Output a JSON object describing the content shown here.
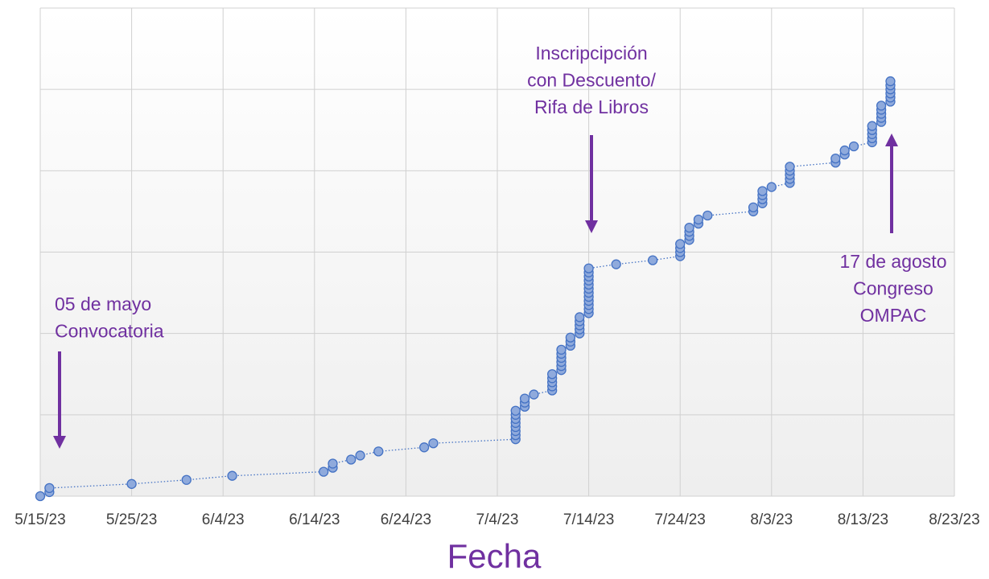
{
  "chart_data": {
    "type": "scatter",
    "x_label": "Fecha",
    "xlim": [
      "2023-05-15",
      "2023-08-23"
    ],
    "xticks": [
      {
        "value": "2023-05-15",
        "label": "5/15/23"
      },
      {
        "value": "2023-05-25",
        "label": "5/25/23"
      },
      {
        "value": "2023-06-04",
        "label": "6/4/23"
      },
      {
        "value": "2023-06-14",
        "label": "6/14/23"
      },
      {
        "value": "2023-06-24",
        "label": "6/24/23"
      },
      {
        "value": "2023-07-04",
        "label": "7/4/23"
      },
      {
        "value": "2023-07-14",
        "label": "7/14/23"
      },
      {
        "value": "2023-07-24",
        "label": "7/24/23"
      },
      {
        "value": "2023-08-03",
        "label": "8/3/23"
      },
      {
        "value": "2023-08-13",
        "label": "8/13/23"
      },
      {
        "value": "2023-08-23",
        "label": "8/23/23"
      }
    ],
    "ylim": [
      0,
      120
    ],
    "yticks": [
      0,
      20,
      40,
      60,
      80,
      100,
      120
    ],
    "ytick_labels": false,
    "grid": true,
    "color": "#8faadc",
    "edge_color": "#4472c4",
    "line_style": "dotted",
    "x": [
      "2023-05-15",
      "2023-05-16",
      "2023-05-16",
      "2023-05-25",
      "2023-05-31",
      "2023-06-05",
      "2023-06-15",
      "2023-06-16",
      "2023-06-16",
      "2023-06-18",
      "2023-06-19",
      "2023-06-21",
      "2023-06-26",
      "2023-06-27",
      "2023-07-06",
      "2023-07-06",
      "2023-07-06",
      "2023-07-06",
      "2023-07-06",
      "2023-07-06",
      "2023-07-06",
      "2023-07-06",
      "2023-07-07",
      "2023-07-07",
      "2023-07-07",
      "2023-07-08",
      "2023-07-10",
      "2023-07-10",
      "2023-07-10",
      "2023-07-10",
      "2023-07-10",
      "2023-07-11",
      "2023-07-11",
      "2023-07-11",
      "2023-07-11",
      "2023-07-11",
      "2023-07-11",
      "2023-07-12",
      "2023-07-12",
      "2023-07-12",
      "2023-07-13",
      "2023-07-13",
      "2023-07-13",
      "2023-07-13",
      "2023-07-13",
      "2023-07-14",
      "2023-07-14",
      "2023-07-14",
      "2023-07-14",
      "2023-07-14",
      "2023-07-14",
      "2023-07-14",
      "2023-07-14",
      "2023-07-14",
      "2023-07-14",
      "2023-07-14",
      "2023-07-14",
      "2023-07-17",
      "2023-07-21",
      "2023-07-24",
      "2023-07-24",
      "2023-07-24",
      "2023-07-24",
      "2023-07-25",
      "2023-07-25",
      "2023-07-25",
      "2023-07-25",
      "2023-07-26",
      "2023-07-26",
      "2023-07-27",
      "2023-08-01",
      "2023-08-01",
      "2023-08-02",
      "2023-08-02",
      "2023-08-02",
      "2023-08-02",
      "2023-08-03",
      "2023-08-05",
      "2023-08-05",
      "2023-08-05",
      "2023-08-05",
      "2023-08-05",
      "2023-08-10",
      "2023-08-10",
      "2023-08-11",
      "2023-08-11",
      "2023-08-12",
      "2023-08-14",
      "2023-08-14",
      "2023-08-14",
      "2023-08-14",
      "2023-08-14",
      "2023-08-15",
      "2023-08-15",
      "2023-08-15",
      "2023-08-15",
      "2023-08-15",
      "2023-08-16",
      "2023-08-16",
      "2023-08-16",
      "2023-08-16",
      "2023-08-16",
      "2023-08-16"
    ],
    "values": [
      0,
      1,
      2,
      3,
      4,
      5,
      6,
      7,
      8,
      9,
      10,
      11,
      12,
      13,
      14,
      15,
      16,
      17,
      18,
      19,
      20,
      21,
      22,
      23,
      24,
      25,
      26,
      27,
      28,
      29,
      30,
      31,
      32,
      33,
      34,
      35,
      36,
      37,
      38,
      39,
      40,
      41,
      42,
      43,
      44,
      45,
      46,
      47,
      48,
      49,
      50,
      51,
      52,
      53,
      54,
      55,
      56,
      57,
      58,
      59,
      60,
      61,
      62,
      63,
      64,
      65,
      66,
      67,
      68,
      69,
      70,
      71,
      72,
      73,
      74,
      75,
      76,
      77,
      78,
      79,
      80,
      81,
      82,
      83,
      84,
      85,
      86,
      87,
      88,
      89,
      90,
      91,
      92,
      93,
      94,
      95,
      96,
      97,
      98,
      99,
      100,
      101,
      102
    ],
    "annotations": [
      {
        "lines": [
          "05 de mayo",
          "Convocatoria"
        ]
      },
      {
        "lines": [
          "Inscripcipción",
          "con Descuento/",
          "Rifa de Libros"
        ]
      },
      {
        "lines": [
          "17 de agosto",
          "Congreso",
          "OMPAC"
        ]
      }
    ]
  }
}
